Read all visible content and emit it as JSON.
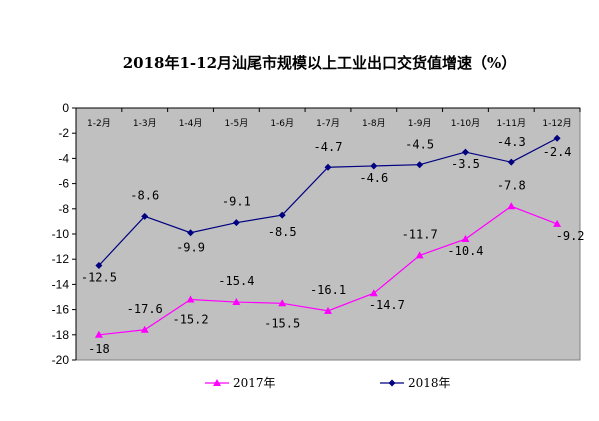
{
  "chart_data": {
    "type": "line",
    "title": "2018年1-12月汕尾市规模以上工业出口交货值增速（%）",
    "categories": [
      "1-2月",
      "1-3月",
      "1-4月",
      "1-5月",
      "1-6月",
      "1-7月",
      "1-8月",
      "1-9月",
      "1-10月",
      "1-11月",
      "1-12月"
    ],
    "ylim": [
      -20,
      0
    ],
    "yticks": [
      0,
      -2,
      -4,
      -6,
      -8,
      -10,
      -12,
      -14,
      -16,
      -18,
      -20
    ],
    "grid": false,
    "legend_position": "bottom",
    "series": [
      {
        "name": "2017年",
        "color": "#ff00ff",
        "marker": "triangle",
        "values": [
          -18,
          -17.6,
          -15.2,
          -15.4,
          -15.5,
          -16.1,
          -14.7,
          -11.7,
          -10.4,
          -7.8,
          -9.2
        ],
        "labels": [
          "-18",
          "-17.6",
          "-15.2",
          "-15.4",
          "-15.5",
          "-16.1",
          "-14.7",
          "-11.7",
          "-10.4",
          "-7.8",
          "-9.2"
        ]
      },
      {
        "name": "2018年",
        "color": "#000080",
        "marker": "diamond",
        "values": [
          -12.5,
          -8.6,
          -9.9,
          -9.1,
          -8.5,
          -4.7,
          -4.6,
          -4.5,
          -3.5,
          -4.3,
          -2.4
        ],
        "labels": [
          "-12.5",
          "-8.6",
          "-9.9",
          "-9.1",
          "-8.5",
          "-4.7",
          "-4.6",
          "-4.5",
          "-3.5",
          "-4.3",
          "-2.4"
        ]
      }
    ]
  }
}
